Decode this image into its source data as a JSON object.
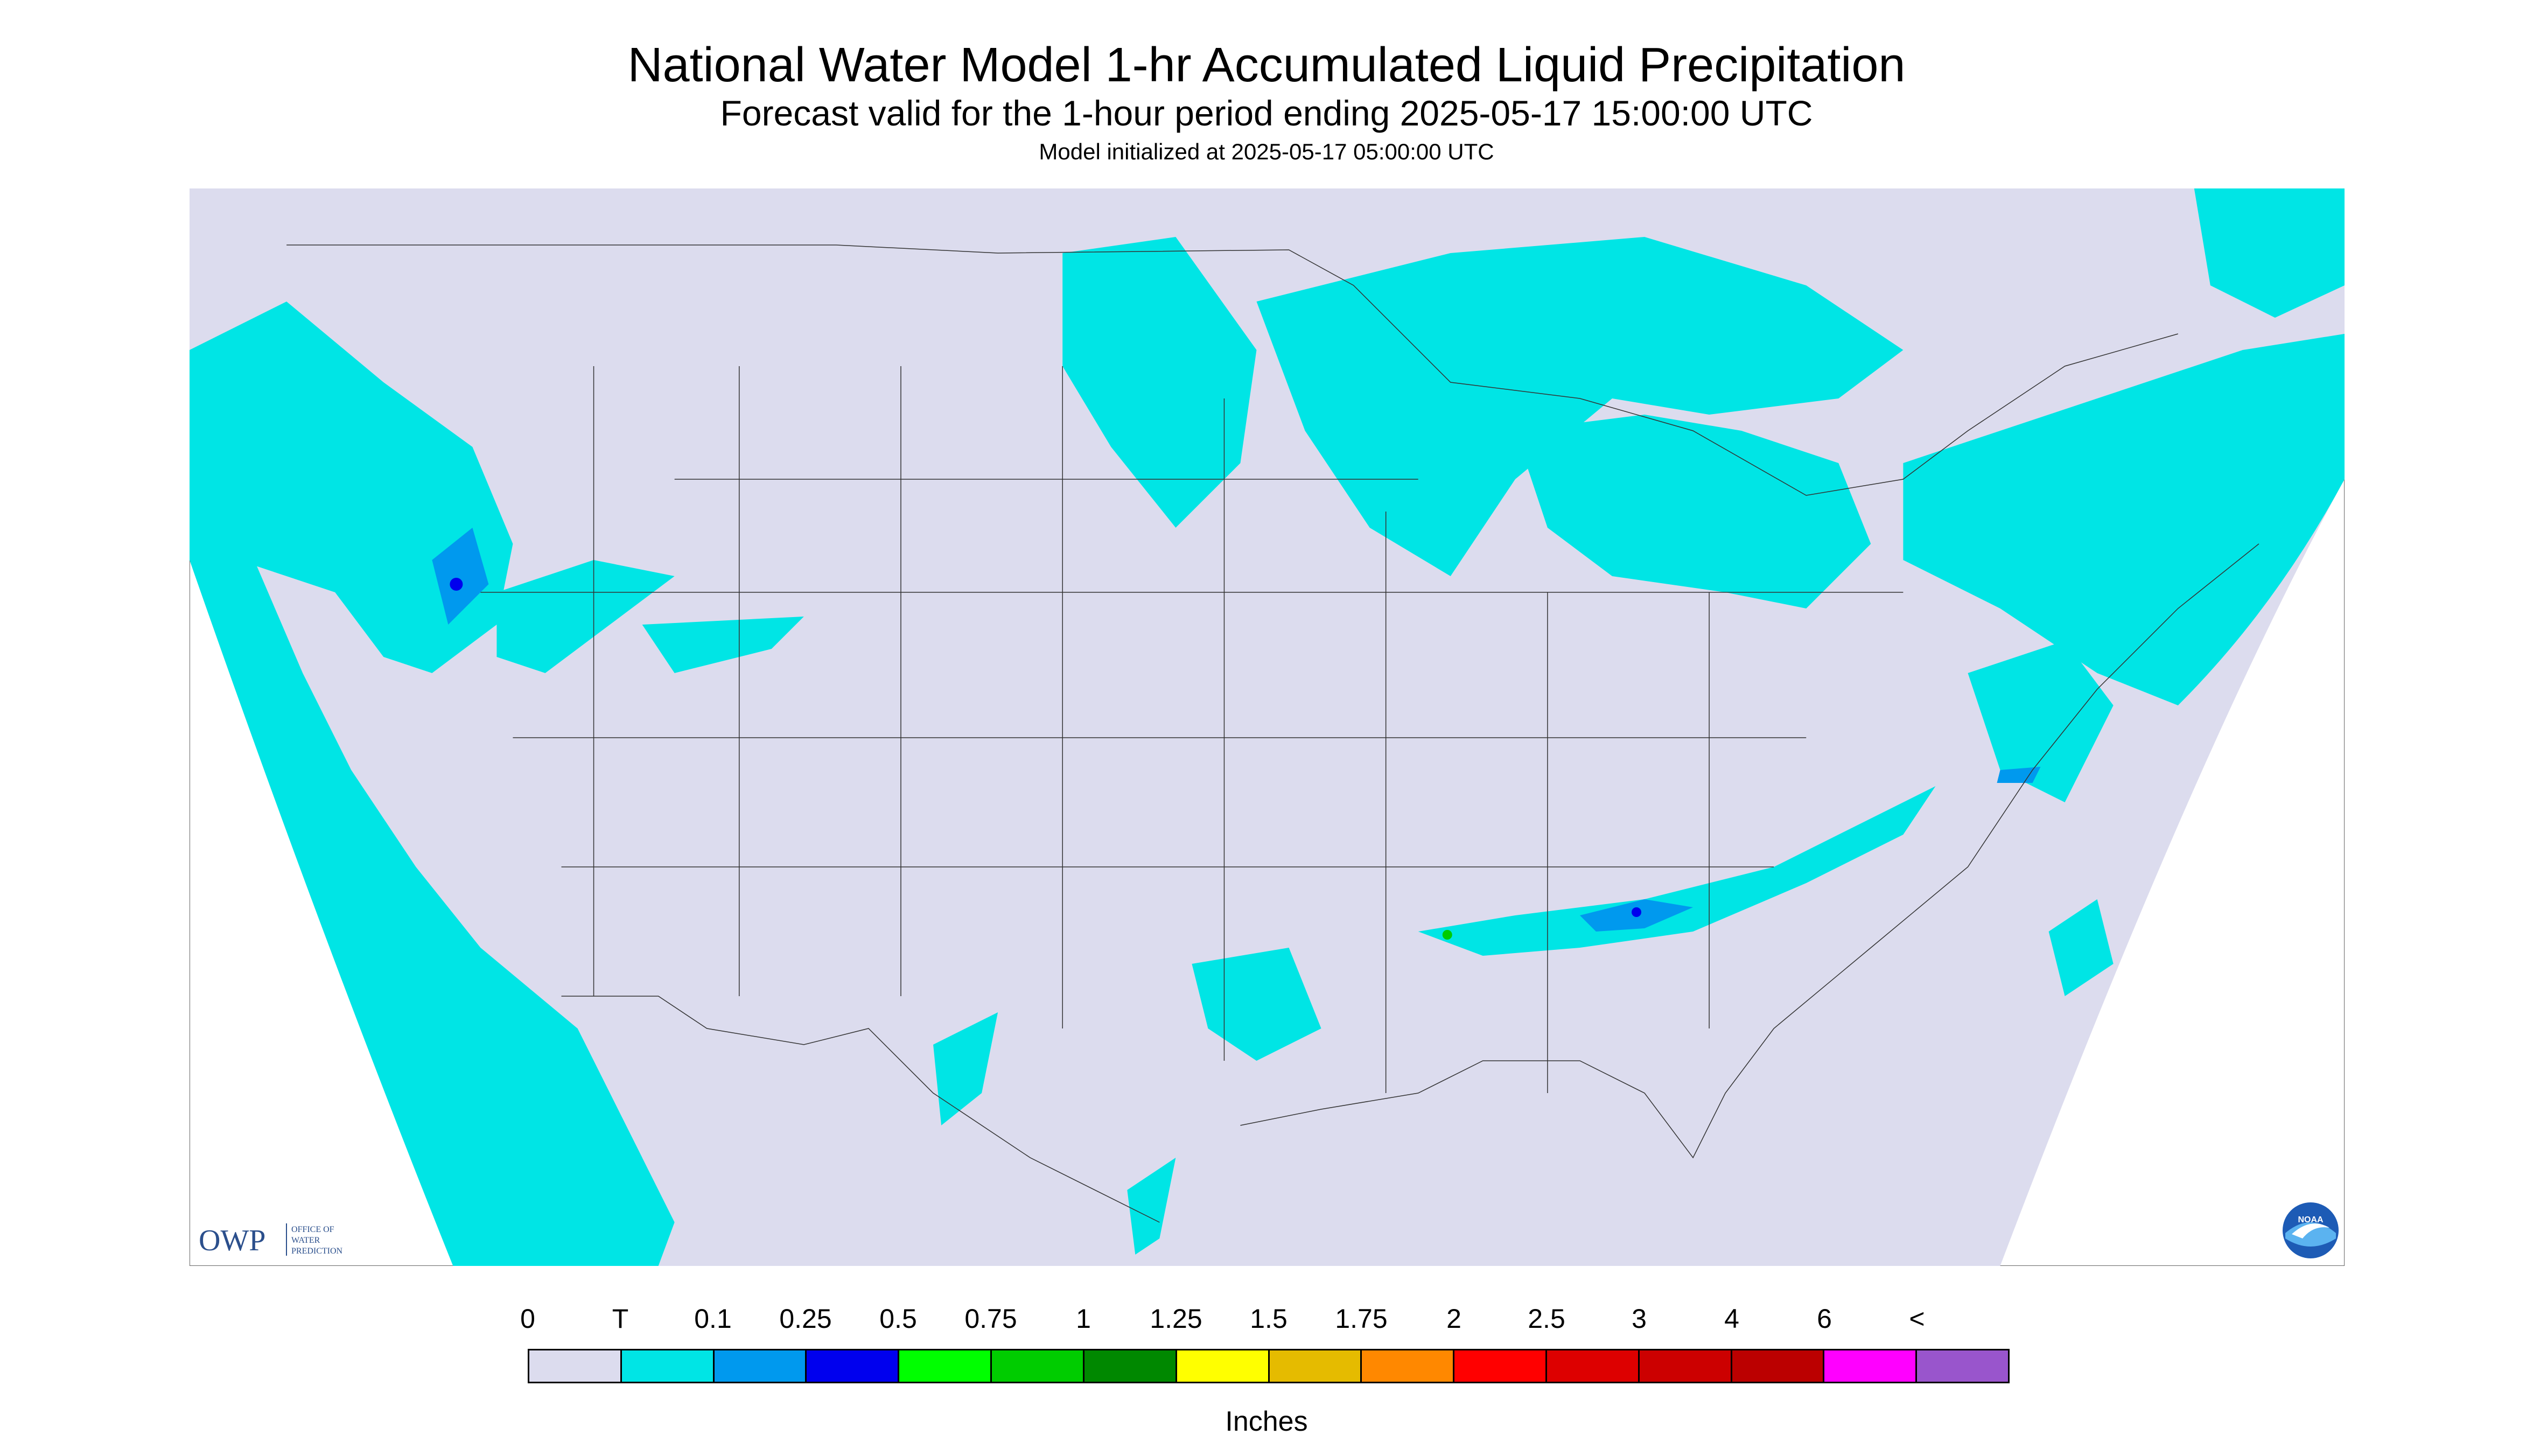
{
  "header": {
    "title": "National Water Model 1-hr Accumulated Liquid Precipitation",
    "subtitle": "Forecast valid for the 1-hour period ending 2025-05-17 15:00:00 UTC",
    "init": "Model initialized at 2025-05-17 05:00:00 UTC"
  },
  "map": {
    "background_color": "#dcdcee",
    "outside_color": "#ffffff",
    "border_color": "#333333",
    "coverage": "CONUS"
  },
  "logos": {
    "owp_text": "OWP",
    "owp_sub": [
      "OFFICE OF",
      "WATER",
      "PREDICTION"
    ],
    "noaa_text": "NOAA"
  },
  "legend": {
    "labels": [
      "0",
      "T",
      "0.1",
      "0.25",
      "0.5",
      "0.75",
      "1",
      "1.25",
      "1.5",
      "1.75",
      "2",
      "2.5",
      "3",
      "4",
      "6",
      "<"
    ],
    "colors": [
      "#dcdcee",
      "#00e5e5",
      "#0099ee",
      "#0000ee",
      "#00ff00",
      "#00cc00",
      "#008800",
      "#ffff00",
      "#e5bb00",
      "#ff8800",
      "#ff0000",
      "#dd0000",
      "#cc0000",
      "#bb0000",
      "#ff00ff",
      "#9955cc"
    ],
    "units": "Inches"
  }
}
